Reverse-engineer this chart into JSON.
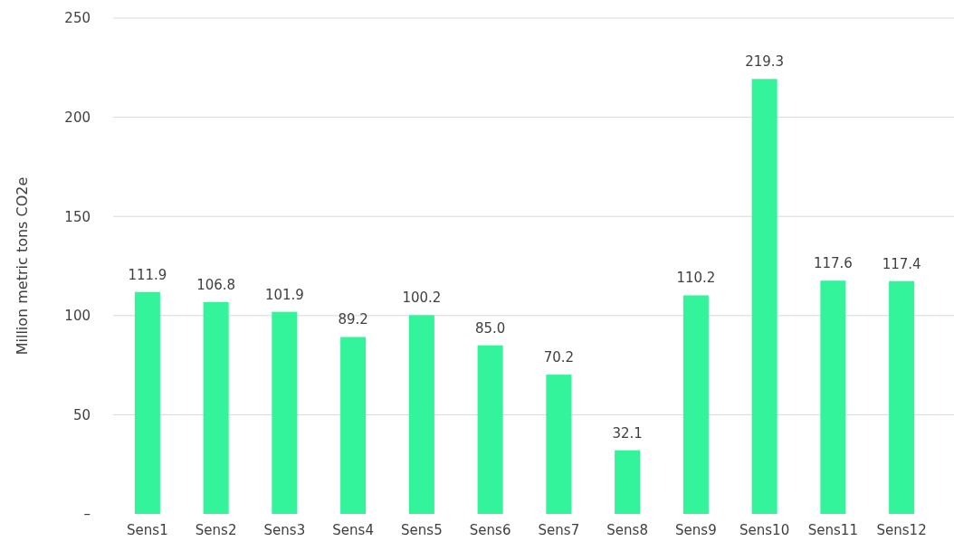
{
  "chart_data": {
    "type": "bar",
    "ylabel": "Million metric tons CO2e",
    "categories": [
      "Sens1",
      "Sens2",
      "Sens3",
      "Sens4",
      "Sens5",
      "Sens6",
      "Sens7",
      "Sens8",
      "Sens9",
      "Sens10",
      "Sens11",
      "Sens12"
    ],
    "values": [
      111.9,
      106.8,
      101.9,
      89.2,
      100.2,
      85.0,
      70.2,
      32.1,
      110.2,
      219.3,
      117.6,
      117.4
    ],
    "value_labels": [
      "111.9",
      "106.8",
      "101.9",
      "89.2",
      "100.2",
      "85.0",
      "70.2",
      "32.1",
      "110.2",
      "219.3",
      "117.6",
      "117.4"
    ],
    "color": "#33f39b",
    "ylim": [
      0,
      250
    ],
    "yticks": [
      {
        "value": 0,
        "label": "–"
      },
      50,
      100,
      150,
      200,
      250
    ],
    "grid": "y"
  }
}
